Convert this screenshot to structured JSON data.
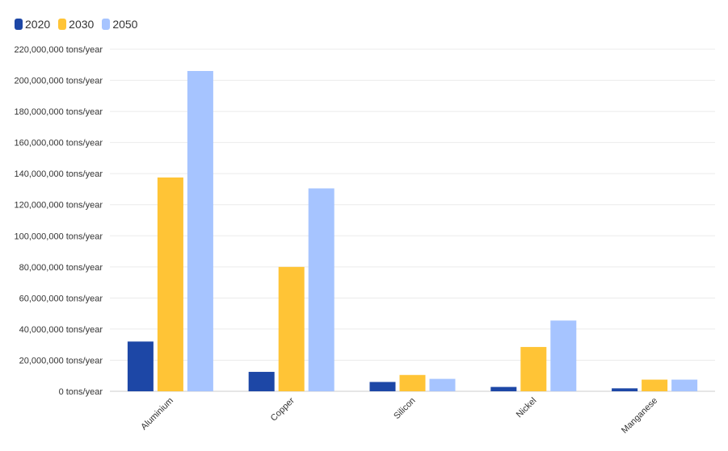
{
  "chart_data": {
    "type": "bar",
    "categories": [
      "Aluminium",
      "Copper",
      "Silicon",
      "Nickel",
      "Manganese"
    ],
    "series": [
      {
        "name": "2020",
        "color": "#1d47a6",
        "values": [
          32000000,
          12500000,
          6000000,
          2800000,
          1900000
        ]
      },
      {
        "name": "2030",
        "color": "#ffc436",
        "values": [
          137500000,
          80000000,
          10500000,
          28500000,
          7500000
        ]
      },
      {
        "name": "2050",
        "color": "#a6c4ff",
        "values": [
          206000000,
          130500000,
          8000000,
          45500000,
          7500000
        ]
      }
    ],
    "ylim": [
      0,
      220000000
    ],
    "yticks": [
      0,
      20000000,
      40000000,
      60000000,
      80000000,
      100000000,
      120000000,
      140000000,
      160000000,
      180000000,
      200000000,
      220000000
    ],
    "ytick_labels": [
      "0 tons/year",
      "20,000,000 tons/year",
      "40,000,000 tons/year",
      "60,000,000 tons/year",
      "80,000,000 tons/year",
      "100,000,000 tons/year",
      "120,000,000 tons/year",
      "140,000,000 tons/year",
      "160,000,000 tons/year",
      "180,000,000 tons/year",
      "200,000,000 tons/year",
      "220,000,000 tons/year"
    ],
    "legend_position": "top-left",
    "grid": true
  }
}
